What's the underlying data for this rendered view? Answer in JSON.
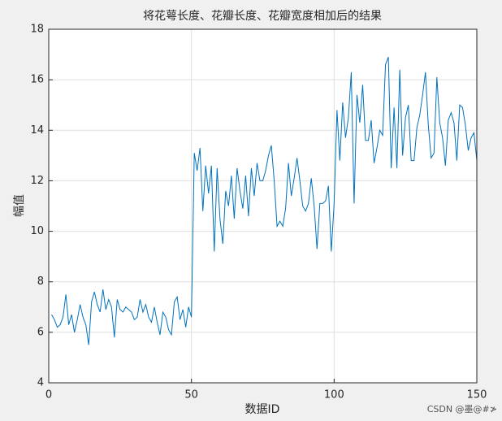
{
  "chart_data": {
    "type": "line",
    "title": "将花萼长度、花瓣长度、花瓣宽度相加后的结果",
    "xlabel": "数据ID",
    "ylabel": "幅值",
    "x": [
      1,
      2,
      3,
      4,
      5,
      6,
      7,
      8,
      9,
      10,
      11,
      12,
      13,
      14,
      15,
      16,
      17,
      18,
      19,
      20,
      21,
      22,
      23,
      24,
      25,
      26,
      27,
      28,
      29,
      30,
      31,
      32,
      33,
      34,
      35,
      36,
      37,
      38,
      39,
      40,
      41,
      42,
      43,
      44,
      45,
      46,
      47,
      48,
      49,
      50,
      51,
      52,
      53,
      54,
      55,
      56,
      57,
      58,
      59,
      60,
      61,
      62,
      63,
      64,
      65,
      66,
      67,
      68,
      69,
      70,
      71,
      72,
      73,
      74,
      75,
      76,
      77,
      78,
      79,
      80,
      81,
      82,
      83,
      84,
      85,
      86,
      87,
      88,
      89,
      90,
      91,
      92,
      93,
      94,
      95,
      96,
      97,
      98,
      99,
      100,
      101,
      102,
      103,
      104,
      105,
      106,
      107,
      108,
      109,
      110,
      111,
      112,
      113,
      114,
      115,
      116,
      117,
      118,
      119,
      120,
      121,
      122,
      123,
      124,
      125,
      126,
      127,
      128,
      129,
      130,
      131,
      132,
      133,
      134,
      135,
      136,
      137,
      138,
      139,
      140,
      141,
      142,
      143,
      144,
      145,
      146,
      147,
      148,
      149,
      150
    ],
    "values": [
      6.7,
      6.5,
      6.2,
      6.3,
      6.6,
      7.5,
      6.3,
      6.7,
      6.0,
      6.5,
      7.1,
      6.6,
      6.3,
      5.5,
      7.2,
      7.6,
      7.1,
      6.8,
      7.7,
      6.9,
      7.3,
      7.0,
      5.8,
      7.3,
      6.9,
      6.8,
      7.0,
      6.9,
      6.8,
      6.5,
      6.6,
      7.3,
      6.8,
      7.1,
      6.6,
      6.4,
      7.0,
      6.4,
      5.9,
      6.8,
      6.6,
      6.1,
      5.9,
      7.2,
      7.4,
      6.5,
      6.9,
      6.2,
      7.0,
      6.6,
      13.1,
      12.4,
      13.3,
      10.8,
      12.6,
      11.5,
      12.6,
      9.2,
      12.5,
      10.5,
      9.5,
      11.6,
      11.0,
      12.2,
      10.5,
      12.5,
      11.6,
      10.9,
      12.2,
      10.6,
      12.5,
      11.4,
      12.7,
      12.0,
      12.0,
      12.4,
      13.0,
      13.4,
      12.0,
      10.2,
      10.4,
      10.2,
      10.9,
      12.7,
      11.4,
      12.1,
      12.9,
      12.0,
      11.0,
      10.8,
      11.1,
      12.1,
      11.0,
      9.3,
      11.1,
      11.1,
      11.2,
      11.8,
      9.2,
      11.1,
      14.8,
      12.8,
      15.1,
      13.7,
      14.5,
      16.3,
      11.1,
      15.4,
      14.3,
      15.8,
      13.6,
      13.6,
      14.4,
      12.7,
      13.3,
      14.0,
      13.8,
      16.6,
      16.9,
      12.5,
      14.9,
      12.5,
      16.4,
      13.0,
      14.5,
      15.0,
      12.8,
      12.8,
      14.1,
      14.6,
      15.4,
      16.3,
      14.2,
      12.9,
      13.1,
      16.1,
      14.3,
      13.7,
      12.6,
      14.4,
      14.7,
      14.3,
      12.8,
      15.0,
      14.9,
      14.2,
      13.2,
      13.7,
      13.9,
      12.8
    ],
    "color": "#0072bd",
    "xlim": [
      0,
      150
    ],
    "xticks": [
      0,
      50,
      100,
      150
    ],
    "ylim": [
      4,
      18
    ],
    "yticks": [
      4,
      6,
      8,
      10,
      12,
      14,
      16,
      18
    ],
    "grid": true
  },
  "watermark": "CSDN @墨@#≯"
}
